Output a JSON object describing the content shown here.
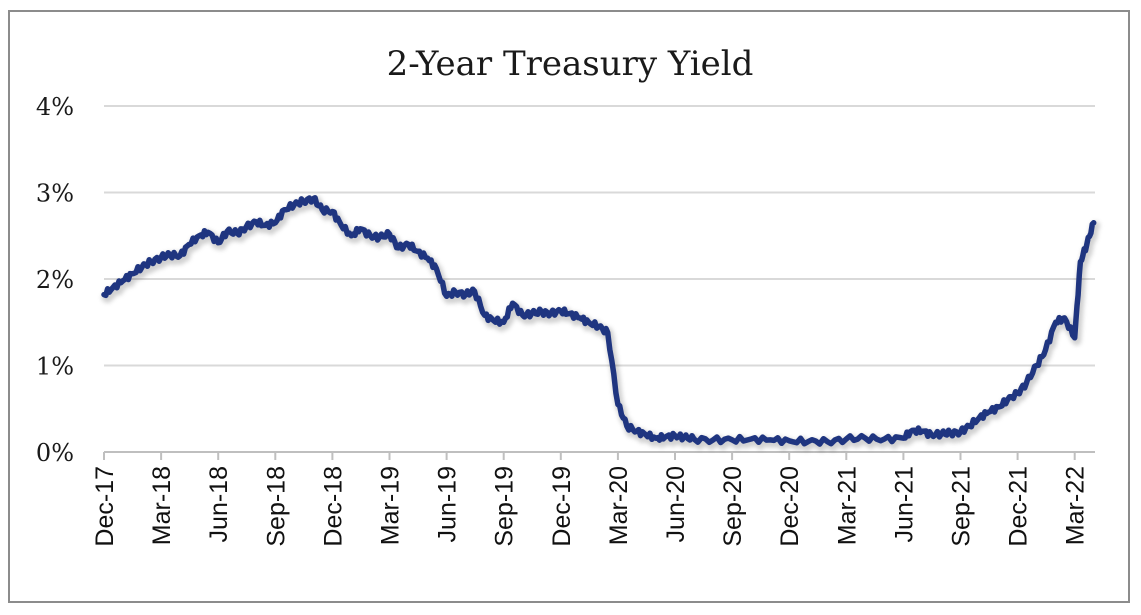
{
  "chart_data": {
    "type": "line",
    "title": "2-Year Treasury Yield",
    "xlabel": "",
    "ylabel": "",
    "ylim": [
      0,
      4
    ],
    "yticks": [
      "0%",
      "1%",
      "2%",
      "3%",
      "4%"
    ],
    "xticks": [
      "Dec-17",
      "Mar-18",
      "Jun-18",
      "Sep-18",
      "Dec-18",
      "Mar-19",
      "Jun-19",
      "Sep-19",
      "Dec-19",
      "Mar-20",
      "Jun-20",
      "Sep-20",
      "Dec-20",
      "Mar-21",
      "Jun-21",
      "Sep-21",
      "Dec-21",
      "Mar-22"
    ],
    "x_start": "2017-12",
    "x_end": "2022-04",
    "grid": "horizontal",
    "legend": "none",
    "color": "#1f3580",
    "series": [
      {
        "x": [
          "2017-12-01",
          "2017-12-15",
          "2018-01-01",
          "2018-01-15",
          "2018-02-01",
          "2018-02-15",
          "2018-03-01",
          "2018-03-15",
          "2018-04-01",
          "2018-04-15",
          "2018-05-01",
          "2018-05-15",
          "2018-06-01",
          "2018-06-15",
          "2018-07-01",
          "2018-07-15",
          "2018-08-01",
          "2018-08-15",
          "2018-09-01",
          "2018-09-15",
          "2018-10-01",
          "2018-10-15",
          "2018-11-01",
          "2018-11-15",
          "2018-12-01",
          "2018-12-15",
          "2019-01-01",
          "2019-01-15",
          "2019-02-01",
          "2019-02-15",
          "2019-03-01",
          "2019-03-15",
          "2019-04-01",
          "2019-04-15",
          "2019-05-01",
          "2019-05-15",
          "2019-06-01",
          "2019-06-15",
          "2019-07-01",
          "2019-07-15",
          "2019-08-01",
          "2019-08-15",
          "2019-09-01",
          "2019-09-15",
          "2019-10-01",
          "2019-10-15",
          "2019-11-01",
          "2019-11-15",
          "2019-12-01",
          "2019-12-15",
          "2020-01-01",
          "2020-01-15",
          "2020-02-01",
          "2020-02-15",
          "2020-03-01",
          "2020-03-15",
          "2020-04-01",
          "2020-04-15",
          "2020-05-01",
          "2020-05-15",
          "2020-06-01",
          "2020-06-15",
          "2020-07-01",
          "2020-08-01",
          "2020-09-01",
          "2020-10-01",
          "2020-11-01",
          "2020-12-01",
          "2021-01-01",
          "2021-02-01",
          "2021-03-01",
          "2021-04-01",
          "2021-05-01",
          "2021-06-01",
          "2021-06-15",
          "2021-07-01",
          "2021-07-15",
          "2021-08-01",
          "2021-08-15",
          "2021-09-01",
          "2021-09-15",
          "2021-10-01",
          "2021-10-15",
          "2021-11-01",
          "2021-11-15",
          "2021-12-01",
          "2021-12-15",
          "2022-01-01",
          "2022-01-15",
          "2022-02-01",
          "2022-02-15",
          "2022-03-01",
          "2022-03-10",
          "2022-03-20",
          "2022-04-01"
        ],
        "values": [
          1.82,
          1.9,
          1.98,
          2.06,
          2.14,
          2.2,
          2.25,
          2.28,
          2.27,
          2.4,
          2.5,
          2.54,
          2.42,
          2.55,
          2.53,
          2.6,
          2.66,
          2.62,
          2.65,
          2.8,
          2.86,
          2.9,
          2.93,
          2.8,
          2.78,
          2.62,
          2.5,
          2.58,
          2.5,
          2.48,
          2.52,
          2.36,
          2.4,
          2.32,
          2.24,
          2.12,
          1.8,
          1.85,
          1.82,
          1.86,
          1.58,
          1.52,
          1.5,
          1.72,
          1.58,
          1.6,
          1.62,
          1.6,
          1.63,
          1.6,
          1.55,
          1.5,
          1.45,
          1.38,
          0.55,
          0.3,
          0.24,
          0.2,
          0.16,
          0.17,
          0.19,
          0.17,
          0.15,
          0.14,
          0.14,
          0.15,
          0.14,
          0.13,
          0.12,
          0.12,
          0.15,
          0.16,
          0.15,
          0.16,
          0.25,
          0.24,
          0.2,
          0.21,
          0.22,
          0.23,
          0.3,
          0.4,
          0.46,
          0.52,
          0.6,
          0.68,
          0.8,
          1.0,
          1.18,
          1.5,
          1.55,
          1.32,
          2.2,
          2.4,
          2.65
        ]
      }
    ]
  }
}
